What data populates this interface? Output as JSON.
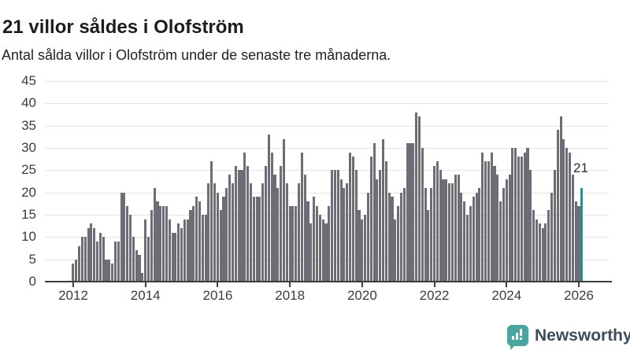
{
  "header": {
    "title": "21 villor såldes i Olofström",
    "subtitle": "Antal sålda villor i Olofström under de senaste tre månaderna."
  },
  "chart_data": {
    "type": "bar",
    "title": "21 villor såldes i Olofström",
    "ylabel": "",
    "xlabel": "",
    "x_interval": "month",
    "x_start": "2012-01",
    "x_end": "2026-02",
    "ylim": [
      0,
      45
    ],
    "yticks": [
      0,
      5,
      10,
      15,
      20,
      25,
      30,
      35,
      40,
      45
    ],
    "xtick_labels": [
      "2012",
      "2014",
      "2016",
      "2018",
      "2020",
      "2022",
      "2024",
      "2026"
    ],
    "grid": true,
    "legend": "none",
    "bar_color": "#6e6d76",
    "highlight_last": {
      "label": "21",
      "value": 21,
      "color": "#009fa4"
    },
    "values": [
      4,
      5,
      8,
      10,
      10,
      12,
      13,
      12,
      9,
      11,
      10,
      5,
      5,
      4,
      9,
      9,
      20,
      20,
      17,
      15,
      10,
      7,
      6,
      2,
      14,
      10,
      16,
      21,
      18,
      17,
      17,
      17,
      14,
      11,
      11,
      13,
      12,
      14,
      14,
      16,
      17,
      19,
      18,
      15,
      15,
      22,
      27,
      22,
      20,
      16,
      19,
      21,
      24,
      22,
      26,
      25,
      25,
      29,
      26,
      22,
      19,
      19,
      19,
      22,
      26,
      33,
      29,
      24,
      21,
      26,
      32,
      22,
      17,
      17,
      17,
      22,
      29,
      24,
      18,
      13,
      19,
      17,
      15,
      14,
      13,
      17,
      25,
      25,
      25,
      23,
      21,
      22,
      29,
      28,
      25,
      16,
      14,
      15,
      20,
      28,
      31,
      23,
      25,
      32,
      27,
      20,
      19,
      14,
      17,
      20,
      21,
      31,
      31,
      31,
      38,
      37,
      30,
      21,
      16,
      21,
      26,
      27,
      25,
      23,
      23,
      22,
      22,
      24,
      24,
      20,
      18,
      15,
      17,
      19,
      20,
      21,
      29,
      27,
      27,
      29,
      26,
      24,
      18,
      21,
      23,
      24,
      30,
      30,
      28,
      28,
      29,
      30,
      25,
      16,
      14,
      13,
      12,
      13,
      16,
      20,
      25,
      34,
      37,
      32,
      30,
      29,
      24,
      18,
      17,
      21
    ]
  },
  "branding": {
    "name": "Newsworthy",
    "icon": "bar-chart-bubble-icon",
    "icon_color": "#4aa59e",
    "text_color": "#3e4c59"
  }
}
